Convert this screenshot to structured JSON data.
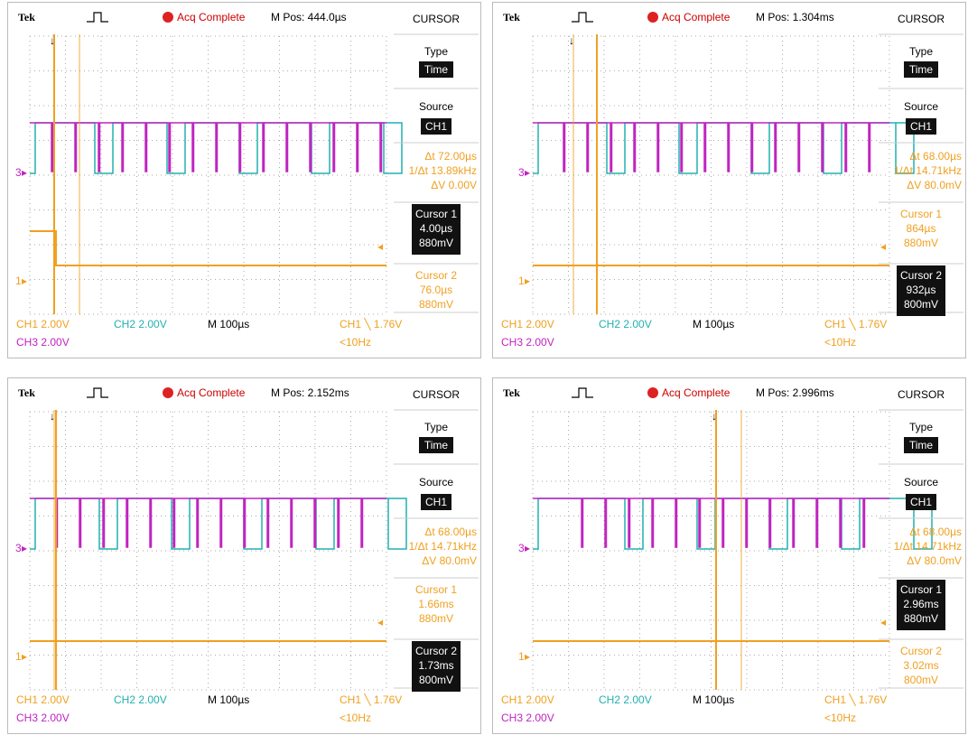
{
  "panels": [
    {
      "header": {
        "brand": "Tek",
        "status": "Acq Complete",
        "position": "M Pos: 444.0µs"
      },
      "markers": {
        "ch3": "3",
        "ch1": "1"
      },
      "menu": {
        "title": "CURSOR",
        "type_label": "Type",
        "type_value": "Time",
        "source_label": "Source",
        "source_value": "CH1",
        "delta_t": "Δt 72.00µs",
        "frequency": "1/Δt 13.89kHz",
        "delta_v": "ΔV 0.00V",
        "cursor1": {
          "label": "Cursor 1",
          "time": "4.00µs",
          "voltage": "880mV"
        },
        "cursor2": {
          "label": "Cursor 2",
          "time": "76.0µs",
          "voltage": "880mV"
        }
      },
      "footer": {
        "ch1": "CH1  2.00V",
        "ch2": "CH2  2.00V",
        "timebase": "M 100µs",
        "trigger": "CH1 ╲ 1.76V",
        "ch3": "CH3  2.00V",
        "trigger_freq": "<10Hz"
      }
    },
    {
      "header": {
        "brand": "Tek",
        "status": "Acq Complete",
        "position": "M Pos: 1.304ms"
      },
      "markers": {
        "ch3": "3",
        "ch1": "1"
      },
      "menu": {
        "title": "CURSOR",
        "type_label": "Type",
        "type_value": "Time",
        "source_label": "Source",
        "source_value": "CH1",
        "delta_t": "Δt 68.00µs",
        "frequency": "1/Δt 14.71kHz",
        "delta_v": "ΔV 80.0mV",
        "cursor1": {
          "label": "Cursor 1",
          "time": "864µs",
          "voltage": "880mV"
        },
        "cursor2": {
          "label": "Cursor 2",
          "time": "932µs",
          "voltage": "800mV"
        }
      },
      "footer": {
        "ch1": "CH1  2.00V",
        "ch2": "CH2  2.00V",
        "timebase": "M 100µs",
        "trigger": "CH1 ╲ 1.76V",
        "ch3": "CH3  2.00V",
        "trigger_freq": "<10Hz"
      }
    },
    {
      "header": {
        "brand": "Tek",
        "status": "Acq Complete",
        "position": "M Pos: 2.152ms"
      },
      "markers": {
        "ch3": "3",
        "ch1": "1"
      },
      "menu": {
        "title": "CURSOR",
        "type_label": "Type",
        "type_value": "Time",
        "source_label": "Source",
        "source_value": "CH1",
        "delta_t": "Δt 68.00µs",
        "frequency": "1/Δt 14.71kHz",
        "delta_v": "ΔV 80.0mV",
        "cursor1": {
          "label": "Cursor 1",
          "time": "1.66ms",
          "voltage": "880mV"
        },
        "cursor2": {
          "label": "Cursor 2",
          "time": "1.73ms",
          "voltage": "800mV"
        }
      },
      "footer": {
        "ch1": "CH1  2.00V",
        "ch2": "CH2  2.00V",
        "timebase": "M 100µs",
        "trigger": "CH1 ╲ 1.76V",
        "ch3": "CH3  2.00V",
        "trigger_freq": "<10Hz"
      }
    },
    {
      "header": {
        "brand": "Tek",
        "status": "Acq Complete",
        "position": "M Pos: 2.996ms"
      },
      "markers": {
        "ch3": "3",
        "ch1": "1"
      },
      "menu": {
        "title": "CURSOR",
        "type_label": "Type",
        "type_value": "Time",
        "source_label": "Source",
        "source_value": "CH1",
        "delta_t": "Δt 68.00µs",
        "frequency": "1/Δt 14.71kHz",
        "delta_v": "ΔV 80.0mV",
        "cursor1": {
          "label": "Cursor 1",
          "time": "2.96ms",
          "voltage": "880mV"
        },
        "cursor2": {
          "label": "Cursor 2",
          "time": "3.02ms",
          "voltage": "800mV"
        }
      },
      "footer": {
        "ch1": "CH1  2.00V",
        "ch2": "CH2  2.00V",
        "timebase": "M 100µs",
        "trigger": "CH1 ╲ 1.76V",
        "ch3": "CH3  2.00V",
        "trigger_freq": "<10Hz"
      }
    }
  ]
}
